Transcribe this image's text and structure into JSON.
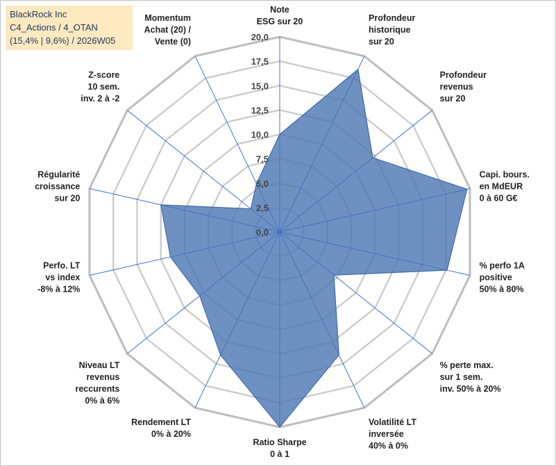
{
  "header": {
    "line1": "BlackRock Inc",
    "line2": "C4_Actions / 4_OTAN",
    "line3": "(15,4% | 9,6%) / 2026W05"
  },
  "colors": {
    "fill": "#4f79b4",
    "stroke": "#3d6aa8",
    "grid": "#c8c8c8",
    "spoke": "#4472c4",
    "title_bg": "#fde9c0",
    "title_text": "#1f3864"
  },
  "chart_data": {
    "type": "radar",
    "ylim": [
      0,
      20
    ],
    "ticks": [
      0,
      2.5,
      5,
      7.5,
      10,
      12.5,
      15,
      17.5,
      20
    ],
    "tick_labels": [
      "0,0",
      "2,5",
      "5,0",
      "7,5",
      "10,0",
      "12,5",
      "15,0",
      "17,5",
      "20,0"
    ],
    "axes": [
      {
        "lines": [
          "Note",
          "ESG sur 20"
        ]
      },
      {
        "lines": [
          "Profondeur",
          "historique",
          "sur 20"
        ]
      },
      {
        "lines": [
          "Profondeur",
          "revenus",
          "sur 20"
        ]
      },
      {
        "lines": [
          "Capi. bours.",
          "en MdEUR",
          "0 à 60 G€"
        ]
      },
      {
        "lines": [
          "% perfo 1A",
          "positive",
          "50% à 80%"
        ]
      },
      {
        "lines": [
          "% perte max.",
          "sur 1 sem.",
          "inv. 50% à 20%"
        ]
      },
      {
        "lines": [
          "Volatilité LT",
          "inversée",
          "40% à 0%"
        ]
      },
      {
        "lines": [
          "Ratio Sharpe",
          "0 à 1"
        ]
      },
      {
        "lines": [
          "Rendement LT",
          "0% à 20%"
        ]
      },
      {
        "lines": [
          "Niveau LT",
          "revenus",
          "reccurents",
          "0% à 6%"
        ]
      },
      {
        "lines": [
          "Perfo. LT",
          "vs index",
          "-8% à 12%"
        ]
      },
      {
        "lines": [
          "Régularité",
          "croissance",
          "sur 20"
        ]
      },
      {
        "lines": [
          "Z-score",
          "10 sem.",
          "inv. 2 à -2"
        ]
      },
      {
        "lines": [
          "Momentum",
          "Achat (20) /",
          "Vente (0)"
        ]
      }
    ],
    "series": [
      {
        "name": "BlackRock Inc",
        "values": [
          10.0,
          18.5,
          12.2,
          19.7,
          17.6,
          7.1,
          14.0,
          20.0,
          14.0,
          10.5,
          11.5,
          12.5,
          3.8,
          5.5
        ]
      }
    ]
  }
}
